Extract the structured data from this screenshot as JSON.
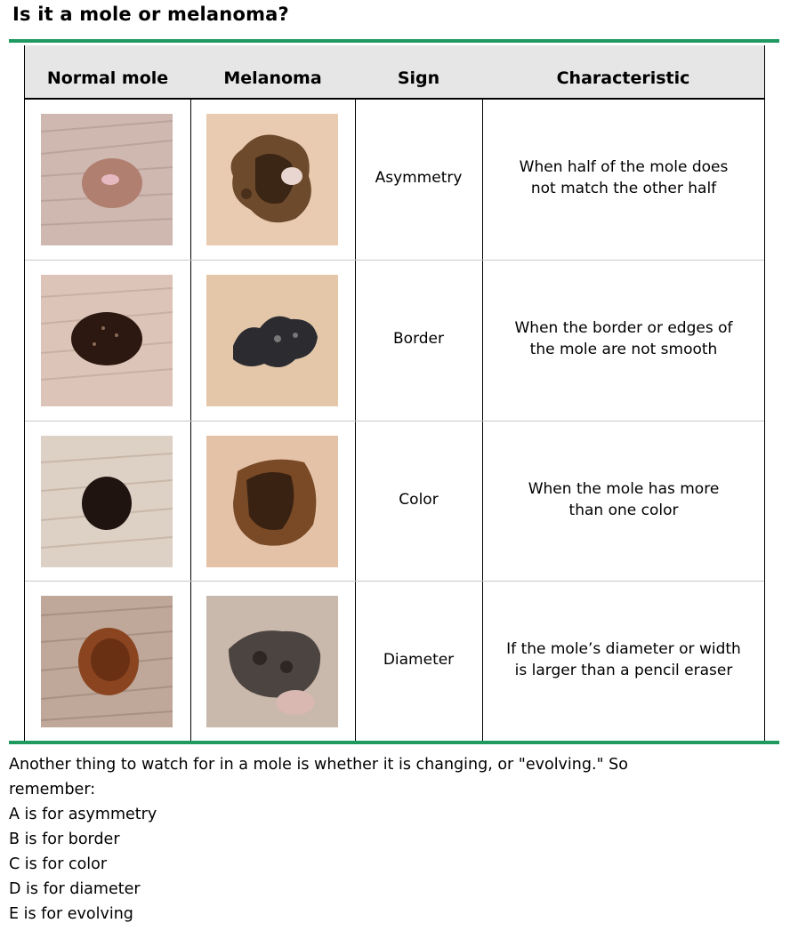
{
  "title": "Is it a mole or melanoma?",
  "table": {
    "headers": [
      "Normal mole",
      "Melanoma",
      "Sign",
      "Characteristic"
    ],
    "rows": [
      {
        "sign": "Asymmetry",
        "characteristic_line1": "When half of the mole does",
        "characteristic_line2": "not match the other half",
        "normal_image": "normal-mole-asymmetry-photo",
        "melanoma_image": "melanoma-asymmetry-photo"
      },
      {
        "sign": "Border",
        "characteristic_line1": "When the border or edges of",
        "characteristic_line2": "the mole are not smooth",
        "normal_image": "normal-mole-border-photo",
        "melanoma_image": "melanoma-border-photo"
      },
      {
        "sign": "Color",
        "characteristic_line1": "When the mole has more",
        "characteristic_line2": "than one color",
        "normal_image": "normal-mole-color-photo",
        "melanoma_image": "melanoma-color-photo"
      },
      {
        "sign": "Diameter",
        "characteristic_line1": "If the mole’s diameter or width",
        "characteristic_line2": "is larger than a pencil eraser",
        "normal_image": "normal-mole-diameter-photo",
        "melanoma_image": "melanoma-diameter-photo"
      }
    ]
  },
  "footer": {
    "line1": "Another thing to watch for in a mole is whether it is changing, or \"evolving.\" So",
    "line2": "remember:",
    "items": [
      "A is for asymmetry",
      "B is for border",
      "C is for color",
      "D is for diameter",
      "E is for evolving"
    ]
  },
  "colors": {
    "accent_rule": "#1e9a5f",
    "header_bg": "#e6e6e6"
  }
}
